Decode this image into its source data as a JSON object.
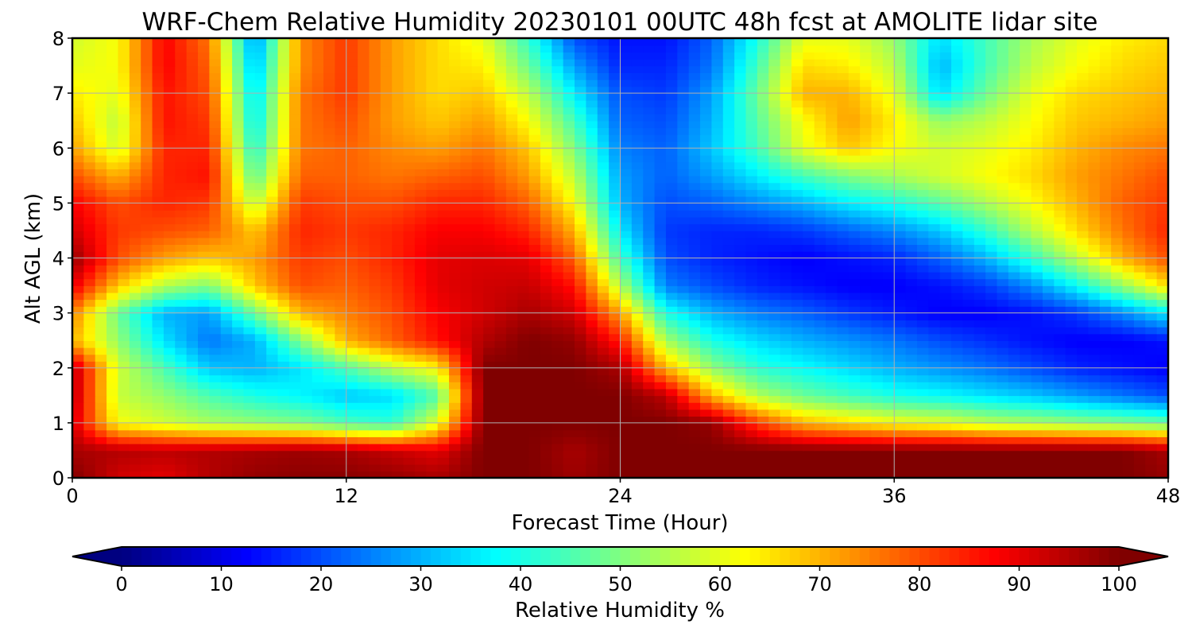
{
  "chart_data": {
    "type": "heatmap",
    "title": "WRF-Chem Relative Humidity 20230101 00UTC 48h fcst at AMOLITE lidar site",
    "xlabel": "Forecast Time (Hour)",
    "ylabel": "Alt AGL (km)",
    "xlim": [
      0,
      48
    ],
    "ylim": [
      0,
      8
    ],
    "x_ticks": [
      "0",
      "12",
      "24",
      "36",
      "48"
    ],
    "y_ticks": [
      "0",
      "1",
      "2",
      "3",
      "4",
      "5",
      "6",
      "7",
      "8"
    ],
    "grid": true,
    "colormap": "jet",
    "z_range": [
      0,
      100
    ],
    "colorbar": {
      "label": "Relative Humidity %",
      "orientation": "horizontal",
      "placement": "bottom",
      "extend": "both",
      "ticks": [
        "0",
        "10",
        "20",
        "30",
        "40",
        "50",
        "60",
        "70",
        "80",
        "90",
        "100"
      ]
    },
    "x": [
      0,
      2,
      4,
      6,
      8,
      10,
      12,
      14,
      16,
      18,
      20,
      22,
      24,
      26,
      28,
      30,
      32,
      34,
      36,
      38,
      40,
      42,
      44,
      46,
      48
    ],
    "y": [
      0,
      0.5,
      1,
      1.5,
      2,
      2.5,
      3,
      3.5,
      4,
      4.5,
      5,
      5.5,
      6,
      6.5,
      7,
      7.5,
      8
    ],
    "z": [
      [
        100,
        92,
        90,
        95,
        98,
        99,
        99,
        98,
        96,
        100,
        100,
        97,
        100,
        100,
        100,
        100,
        100,
        100,
        100,
        100,
        100,
        100,
        100,
        100,
        98
      ],
      [
        96,
        95,
        94,
        95,
        96,
        97,
        96,
        93,
        90,
        100,
        100,
        96,
        100,
        100,
        100,
        100,
        100,
        100,
        100,
        100,
        100,
        100,
        100,
        100,
        96
      ],
      [
        92,
        62,
        58,
        54,
        52,
        50,
        45,
        42,
        60,
        100,
        100,
        100,
        100,
        100,
        98,
        82,
        70,
        66,
        62,
        60,
        56,
        54,
        52,
        50,
        48
      ],
      [
        95,
        57,
        52,
        45,
        40,
        37,
        32,
        34,
        46,
        100,
        100,
        100,
        100,
        94,
        70,
        55,
        48,
        44,
        40,
        38,
        35,
        32,
        28,
        24,
        20
      ],
      [
        95,
        58,
        45,
        32,
        30,
        35,
        45,
        56,
        63,
        100,
        100,
        100,
        96,
        70,
        52,
        42,
        38,
        34,
        30,
        27,
        24,
        20,
        16,
        14,
        12
      ],
      [
        70,
        52,
        35,
        24,
        30,
        50,
        70,
        78,
        86,
        95,
        100,
        98,
        85,
        54,
        40,
        34,
        30,
        27,
        24,
        20,
        17,
        14,
        12,
        12,
        14
      ],
      [
        75,
        48,
        30,
        28,
        48,
        70,
        75,
        80,
        88,
        92,
        96,
        92,
        72,
        40,
        30,
        25,
        22,
        18,
        15,
        12,
        12,
        14,
        18,
        26,
        36
      ],
      [
        90,
        68,
        55,
        50,
        68,
        80,
        78,
        82,
        90,
        92,
        93,
        86,
        55,
        25,
        20,
        16,
        14,
        12,
        12,
        14,
        18,
        26,
        38,
        52,
        66
      ],
      [
        98,
        80,
        72,
        68,
        72,
        82,
        80,
        84,
        90,
        91,
        90,
        78,
        44,
        20,
        16,
        14,
        12,
        14,
        16,
        22,
        30,
        42,
        56,
        70,
        80
      ],
      [
        92,
        82,
        80,
        78,
        68,
        84,
        82,
        84,
        88,
        88,
        84,
        70,
        36,
        18,
        16,
        16,
        18,
        22,
        26,
        32,
        42,
        55,
        66,
        76,
        84
      ],
      [
        88,
        80,
        84,
        82,
        56,
        82,
        80,
        80,
        84,
        84,
        78,
        62,
        30,
        20,
        22,
        26,
        30,
        36,
        40,
        46,
        54,
        62,
        70,
        78,
        82
      ],
      [
        80,
        70,
        84,
        86,
        46,
        78,
        78,
        76,
        78,
        80,
        72,
        56,
        28,
        22,
        28,
        36,
        44,
        50,
        54,
        58,
        62,
        66,
        72,
        76,
        80
      ],
      [
        72,
        58,
        84,
        84,
        40,
        76,
        78,
        74,
        72,
        76,
        68,
        50,
        25,
        22,
        32,
        44,
        60,
        68,
        62,
        58,
        60,
        64,
        70,
        74,
        76
      ],
      [
        68,
        56,
        86,
        82,
        36,
        76,
        80,
        72,
        68,
        72,
        62,
        44,
        22,
        20,
        30,
        46,
        62,
        72,
        64,
        52,
        56,
        62,
        68,
        70,
        72
      ],
      [
        64,
        60,
        86,
        80,
        34,
        76,
        82,
        72,
        66,
        68,
        56,
        36,
        20,
        18,
        28,
        48,
        70,
        70,
        60,
        34,
        48,
        60,
        66,
        68,
        70
      ],
      [
        60,
        62,
        88,
        78,
        30,
        74,
        82,
        72,
        66,
        64,
        48,
        28,
        16,
        16,
        24,
        44,
        66,
        64,
        56,
        30,
        44,
        56,
        62,
        66,
        68
      ],
      [
        58,
        62,
        88,
        76,
        26,
        74,
        82,
        72,
        66,
        60,
        42,
        20,
        14,
        14,
        22,
        40,
        60,
        60,
        52,
        34,
        44,
        54,
        60,
        64,
        66
      ]
    ]
  }
}
